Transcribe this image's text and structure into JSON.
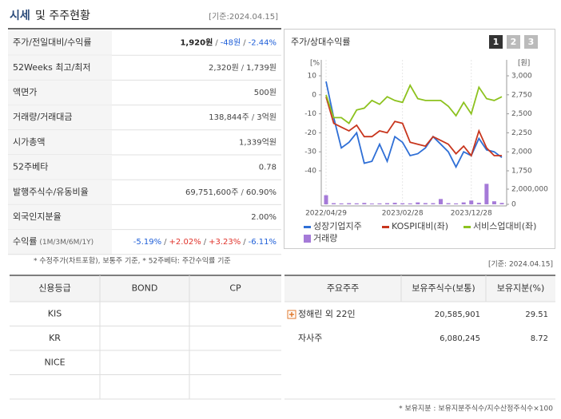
{
  "header": {
    "title": "시세",
    "subtitle": "및 주주현황",
    "date": "[기준:2024.04.15]"
  },
  "summary": {
    "separator": "/",
    "rows": [
      {
        "label": "주가/전일대비/수익률",
        "values": [
          "1,920원",
          "-48원",
          "-2.44%"
        ],
        "tones": [
          "bold",
          "down",
          "down"
        ]
      },
      {
        "label": "52Weeks 최고/최저",
        "values": [
          "2,320원",
          "1,739원"
        ]
      },
      {
        "label": "액면가",
        "values": [
          "500원"
        ]
      },
      {
        "label": "거래량/거래대금",
        "values": [
          "138,844주",
          "3억원"
        ]
      },
      {
        "label": "시가총액",
        "values": [
          "1,339억원"
        ]
      },
      {
        "label": "52주베타",
        "values": [
          "0.78"
        ]
      },
      {
        "label": "발행주식수/유동비율",
        "values": [
          "69,751,600주",
          "60.90%"
        ]
      },
      {
        "label": "외국인지분율",
        "values": [
          "2.00%"
        ]
      },
      {
        "label": "수익률",
        "label_note": "(1M/3M/6M/1Y)",
        "values": [
          "-5.19%",
          "+2.02%",
          "+3.23%",
          "-6.11%"
        ],
        "tones": [
          "down",
          "up",
          "up",
          "down"
        ]
      }
    ],
    "footnote": "* 수정주가(차트포함), 보통주 기준, * 52주베타: 주간수익률 기준"
  },
  "chart_data": {
    "type": "line",
    "title": "주가/상대수익률",
    "tabs": [
      "1",
      "2",
      "3"
    ],
    "y_label": "[%",
    "y2_label": "[원]",
    "categories": [
      "2022/04/29",
      null,
      null,
      null,
      null,
      null,
      null,
      null,
      null,
      null,
      "2023/02/28",
      null,
      null,
      null,
      null,
      null,
      null,
      null,
      null,
      "2023/12/28",
      null,
      null,
      null,
      null
    ],
    "series": [
      {
        "name": "성장기업지주",
        "color": "#2f6fd6",
        "values": [
          7,
          -12,
          -28,
          -25,
          -20,
          -36,
          -35,
          -26,
          -35,
          -22,
          -25,
          -32,
          -31,
          -28,
          -22,
          -26,
          -30,
          -38,
          -30,
          -32,
          -23,
          -29,
          -30,
          -33
        ]
      },
      {
        "name": "KOSPI대비(좌)",
        "color": "#c8361e",
        "values": [
          -1,
          -15,
          -17,
          -19,
          -16,
          -22,
          -22,
          -19,
          -20,
          -14,
          -15,
          -25,
          -26,
          -27,
          -22,
          -24,
          -26,
          -31,
          -27,
          -32,
          -19,
          -28,
          -32,
          -32
        ]
      },
      {
        "name": "서비스업대비(좌)",
        "color": "#8dc21f",
        "values": [
          0,
          -12,
          -12,
          -15,
          -8,
          -7,
          -3,
          -5,
          -1,
          -3,
          -4,
          5,
          -2,
          -3,
          -3,
          -3,
          -6,
          -11,
          -4,
          -10,
          4,
          -2,
          -3,
          -1
        ]
      },
      {
        "name": "거래량",
        "color": "#a57ad8",
        "axis": "y3",
        "values": [
          1200000,
          150000,
          120000,
          150000,
          130000,
          180000,
          100000,
          120000,
          150000,
          200000,
          140000,
          120000,
          250000,
          160000,
          150000,
          700000,
          150000,
          120000,
          250000,
          500000,
          200000,
          2700000,
          400000,
          180000
        ]
      }
    ],
    "ylim": [
      -40,
      10
    ],
    "yticks": [
      10,
      0,
      -10,
      -20,
      -30,
      -40
    ],
    "y2lim": [
      1750,
      3000
    ],
    "y2ticks": [
      {
        "value": 3000,
        "label": "3,000"
      },
      {
        "value": 2750,
        "label": "2,750"
      },
      {
        "value": 2500,
        "label": "2,500"
      },
      {
        "value": 2250,
        "label": "2,250"
      },
      {
        "value": 2000,
        "label": "2,000"
      },
      {
        "value": 1750,
        "label": "1,750"
      }
    ],
    "y3lim": [
      0,
      2000000
    ],
    "y3ticks": [
      {
        "value": 2000000,
        "label": "2,000,000"
      },
      0
    ]
  },
  "ratings": {
    "headers": [
      "신용등급",
      "BOND",
      "CP"
    ],
    "agencies": [
      "KIS",
      "KR",
      "NICE"
    ]
  },
  "shareholders": {
    "date": "[기준: 2024.04.15]",
    "headers": [
      "주요주주",
      "보유주식수(보통)",
      "보유지분(%)"
    ],
    "rows": [
      [
        "정해린 외 22인",
        "20,585,901",
        "29.51"
      ],
      [
        "자사주",
        "6,080,245",
        "8.72"
      ]
    ],
    "footnote": "* 보유지분 : 보유지분주식수/지수산정주식수×100"
  }
}
